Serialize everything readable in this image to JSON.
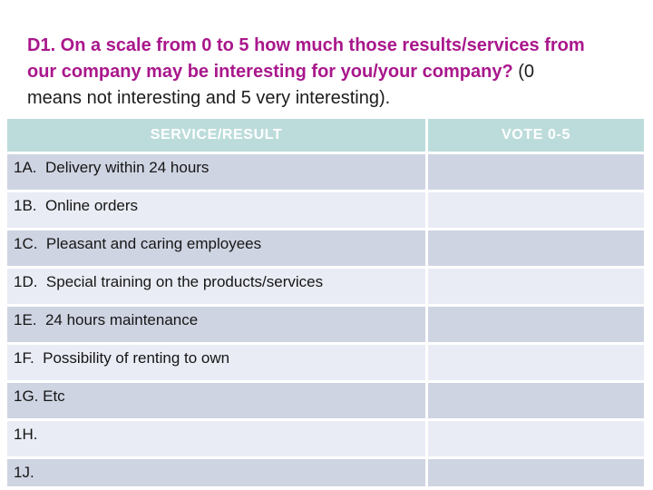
{
  "title": {
    "line1": "D1. On a scale from 0 to 5 how much those results/services from",
    "line2_highlight": "our company may be interesting for you/your company?",
    "line2_plain": " (0",
    "line3": "means not interesting and 5 very interesting).",
    "highlight_color": "#a9178c",
    "plain_color": "#1c1c1c"
  },
  "table": {
    "headers": {
      "service": "SERVICE/RESULT",
      "vote": "VOTE 0-5"
    },
    "header_bg_color": "#bcdcdb",
    "header_text_color": "#ffffff",
    "row_band_colors": [
      "#cfd4e2",
      "#e9ecf4"
    ],
    "rows": [
      {
        "service": "1A.  Delivery within 24 hours",
        "vote": ""
      },
      {
        "service": "1B.  Online orders",
        "vote": ""
      },
      {
        "service": "1C.  Pleasant and caring employees",
        "vote": ""
      },
      {
        "service": "1D.  Special training on the products/services",
        "vote": ""
      },
      {
        "service": "1E.  24 hours maintenance",
        "vote": ""
      },
      {
        "service": "1F.  Possibility of renting to own",
        "vote": ""
      },
      {
        "service": "1G. Etc",
        "vote": ""
      },
      {
        "service": "1H.",
        "vote": ""
      },
      {
        "service": "1J.",
        "vote": ""
      }
    ]
  }
}
